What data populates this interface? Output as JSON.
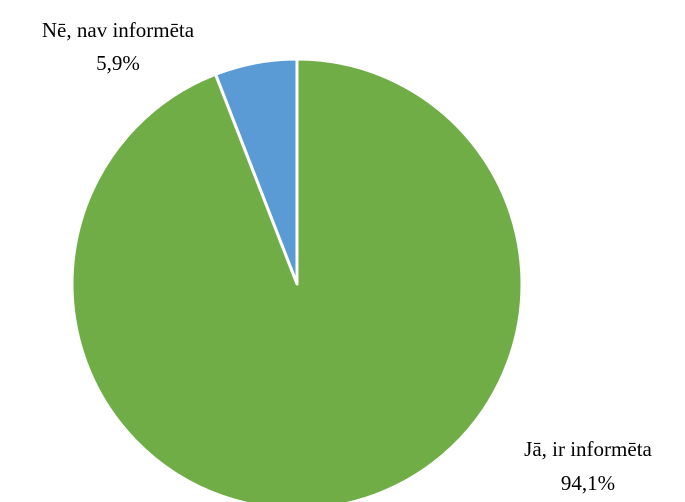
{
  "chart_data": {
    "type": "pie",
    "slices": [
      {
        "label": "Nē, nav informēta",
        "value": 5.9,
        "value_label": "5,9%",
        "color": "#5b9bd5"
      },
      {
        "label": "Jā, ir informēta",
        "value": 94.1,
        "value_label": "94,1%",
        "color": "#70ad47"
      }
    ],
    "start_angle": "12 o'clock",
    "direction": "counter-clockwise",
    "legend": "none",
    "slice_border_color": "#ffffff"
  }
}
